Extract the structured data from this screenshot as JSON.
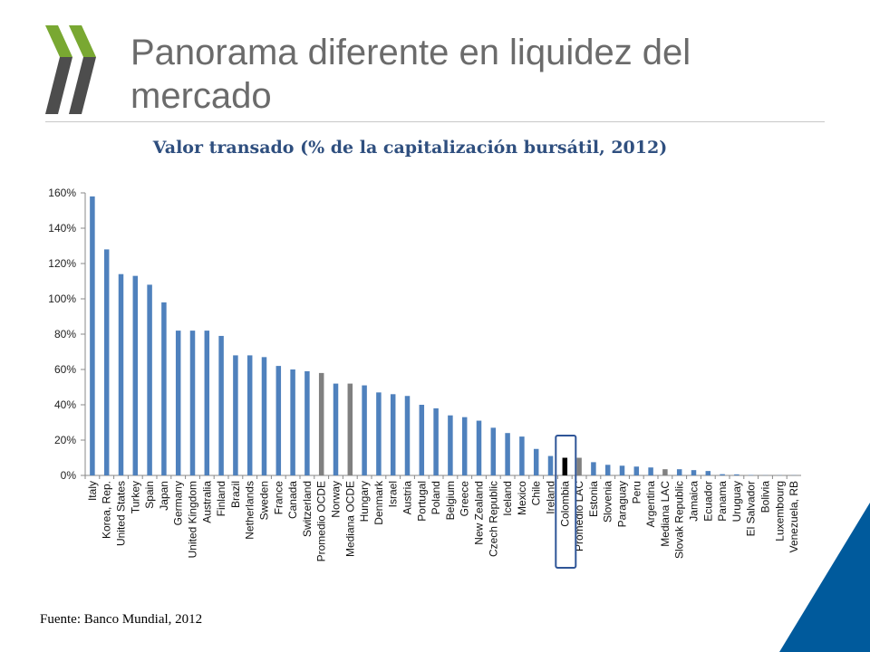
{
  "header": {
    "title": "Panorama diferente en liquidez del mercado",
    "logo": "oecd-chevron-logo"
  },
  "footer": {
    "source": "Fuente: Banco Mundial, 2012"
  },
  "colors": {
    "bar_default": "#4f81bd",
    "bar_oecd_aggregate": "#808080",
    "bar_highlight": "#000000",
    "highlight_box": "#2f5597",
    "logo": "#79a832",
    "logo_dark": "#4d4d4d",
    "corner_accent": "#005a9c"
  },
  "chart_data": {
    "type": "bar",
    "title": "Valor transado (% de la capitalización bursátil, 2012)",
    "xlabel": "",
    "ylabel": "",
    "ylim": [
      0,
      160
    ],
    "y_ticks": [
      "0%",
      "20%",
      "40%",
      "60%",
      "80%",
      "100%",
      "120%",
      "140%",
      "160%"
    ],
    "grid": false,
    "highlighted_category": "Colombia",
    "gray_categories": [
      "Promedio OCDE",
      "Mediana OCDE",
      "Promedio LAC",
      "Mediana LAC"
    ],
    "categories": [
      "Italy",
      "Korea, Rep.",
      "United States",
      "Turkey",
      "Spain",
      "Japan",
      "Germany",
      "United Kingdom",
      "Australia",
      "Finland",
      "Brazil",
      "Netherlands",
      "Sweden",
      "France",
      "Canada",
      "Switzerland",
      "Promedio OCDE",
      "Norway",
      "Mediana OCDE",
      "Hungary",
      "Denmark",
      "Israel",
      "Austria",
      "Portugal",
      "Poland",
      "Belgium",
      "Greece",
      "New Zealand",
      "Czech Republic",
      "Iceland",
      "Mexico",
      "Chile",
      "Ireland",
      "Colombia",
      "Promedio LAC",
      "Estonia",
      "Slovenia",
      "Paraguay",
      "Peru",
      "Argentina",
      "Mediana LAC",
      "Slovak Republic",
      "Jamaica",
      "Ecuador",
      "Panama",
      "Uruguay",
      "El Salvador",
      "Bolivia",
      "Luxembourg",
      "Venezuela, RB"
    ],
    "values": [
      158,
      128,
      114,
      113,
      108,
      98,
      82,
      82,
      82,
      79,
      68,
      68,
      67,
      62,
      60,
      59,
      58,
      52,
      52,
      51,
      47,
      46,
      45,
      40,
      38,
      34,
      33,
      31,
      27,
      24,
      22,
      15,
      11,
      10,
      10,
      7.5,
      6,
      5.5,
      5,
      4.5,
      3.5,
      3.5,
      3,
      2.5,
      0.7,
      0.6,
      0.2,
      0.1,
      0.1,
      0.1
    ]
  }
}
